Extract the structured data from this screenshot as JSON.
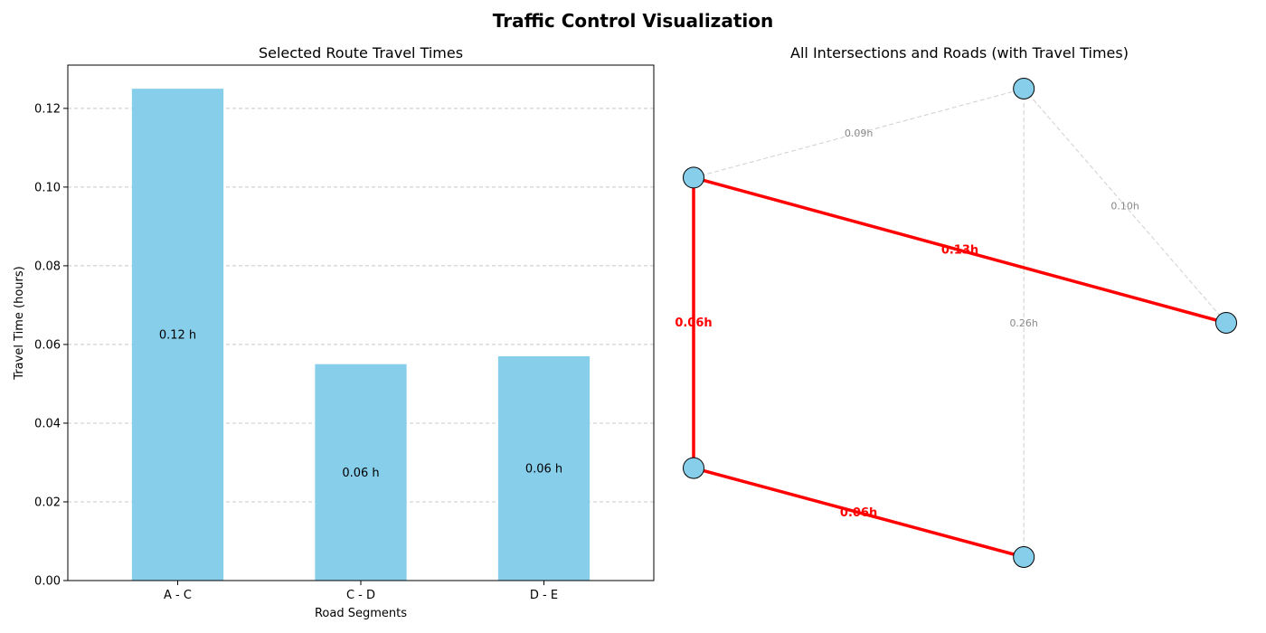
{
  "title": "Traffic Control Visualization",
  "chart_data": [
    {
      "type": "bar",
      "title": "Selected Route Travel Times",
      "xlabel": "Road Segments",
      "ylabel": "Travel Time (hours)",
      "categories": [
        "A - C",
        "C - D",
        "D - E"
      ],
      "values": [
        0.125,
        0.055,
        0.057
      ],
      "data_labels": [
        "0.12 h",
        "0.06 h",
        "0.06 h"
      ],
      "ylim": [
        0,
        0.131
      ],
      "yticks": [
        0.0,
        0.02,
        0.04,
        0.06,
        0.08,
        0.1,
        0.12
      ],
      "ytick_labels": [
        "0.00",
        "0.02",
        "0.04",
        "0.06",
        "0.08",
        "0.10",
        "0.12"
      ],
      "grid": "y-dashed",
      "bar_color": "#87CEEB"
    },
    {
      "type": "network",
      "title": "All Intersections and Roads (with Travel Times)",
      "node_color": "#87CEEB",
      "route_color": "#FF0000",
      "other_color": "#BBBBBB",
      "nodes": [
        {
          "id": "n1",
          "x": 0.0,
          "y": 0.78
        },
        {
          "id": "n2",
          "x": 0.62,
          "y": 0.97
        },
        {
          "id": "n3",
          "x": 1.0,
          "y": 0.47
        },
        {
          "id": "n4",
          "x": 0.0,
          "y": 0.16
        },
        {
          "id": "n5",
          "x": 0.62,
          "y": -0.03
        }
      ],
      "edges": [
        {
          "from": "n1",
          "to": "n2",
          "label": "0.09h",
          "route": false
        },
        {
          "from": "n2",
          "to": "n3",
          "label": "0.10h",
          "route": false
        },
        {
          "from": "n2",
          "to": "n5",
          "label": "0.26h",
          "route": false
        },
        {
          "from": "n1",
          "to": "n3",
          "label": "0.13h",
          "route": true
        },
        {
          "from": "n1",
          "to": "n4",
          "label": "0.06h",
          "route": true
        },
        {
          "from": "n4",
          "to": "n5",
          "label": "0.06h",
          "route": true
        }
      ]
    }
  ]
}
